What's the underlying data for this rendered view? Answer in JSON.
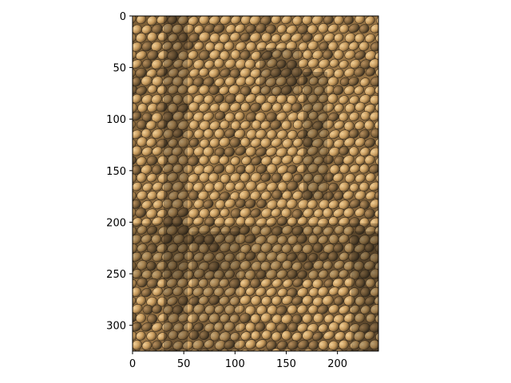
{
  "figure": {
    "image_description_icon": "scales-texture-image",
    "colors": {
      "texture_dark": "#3b3326",
      "texture_mid": "#8a6a3e",
      "texture_light": "#d8b27a",
      "frame": "#000000"
    }
  },
  "axes": {
    "x_ticks": [
      {
        "value": 0,
        "label": "0"
      },
      {
        "value": 50,
        "label": "50"
      },
      {
        "value": 100,
        "label": "100"
      },
      {
        "value": 150,
        "label": "150"
      },
      {
        "value": 200,
        "label": "200"
      }
    ],
    "y_ticks": [
      {
        "value": 0,
        "label": "0"
      },
      {
        "value": 50,
        "label": "50"
      },
      {
        "value": 100,
        "label": "100"
      },
      {
        "value": 150,
        "label": "150"
      },
      {
        "value": 200,
        "label": "200"
      },
      {
        "value": 250,
        "label": "250"
      },
      {
        "value": 300,
        "label": "300"
      }
    ],
    "x_range": [
      0,
      240
    ],
    "y_range": [
      0,
      325
    ]
  }
}
